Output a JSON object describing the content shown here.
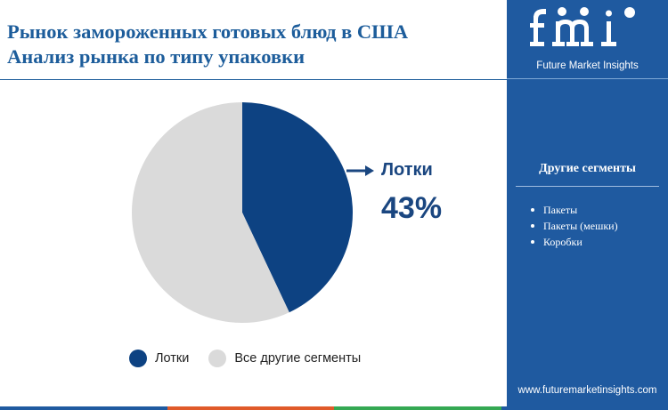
{
  "header": {
    "title_line1": "Рынок замороженных готовых блюд в США",
    "title_line2": "Анализ рынка по типу упаковки"
  },
  "chart_data": {
    "type": "pie",
    "title": "Рынок замороженных готовых блюд в США Анализ рынка по типу упаковки",
    "categories": [
      "Лотки",
      "Все другие сегменты"
    ],
    "values": [
      43,
      57
    ],
    "colors": [
      "#0d4282",
      "#dadada"
    ],
    "legend_position": "bottom",
    "callout": {
      "label": "Лотки",
      "value": "43%"
    }
  },
  "legend": {
    "items": [
      {
        "label": "Лотки",
        "color": "#0d4282"
      },
      {
        "label": "Все другие сегменты",
        "color": "#dadada"
      }
    ]
  },
  "sidebar": {
    "logo_text": "fmi",
    "logo_caption": "Future Market Insights",
    "segments_title": "Другие сегменты",
    "segments": [
      "Пакеты",
      "Пакеты (мешки)",
      "Коробки"
    ],
    "url": "www.futuremarketinsights.com",
    "background": "#1f5aa0"
  },
  "bottom_bar_colors": [
    "#1f5aa0",
    "#e05a2a",
    "#34a853",
    "#1f5aa0"
  ]
}
